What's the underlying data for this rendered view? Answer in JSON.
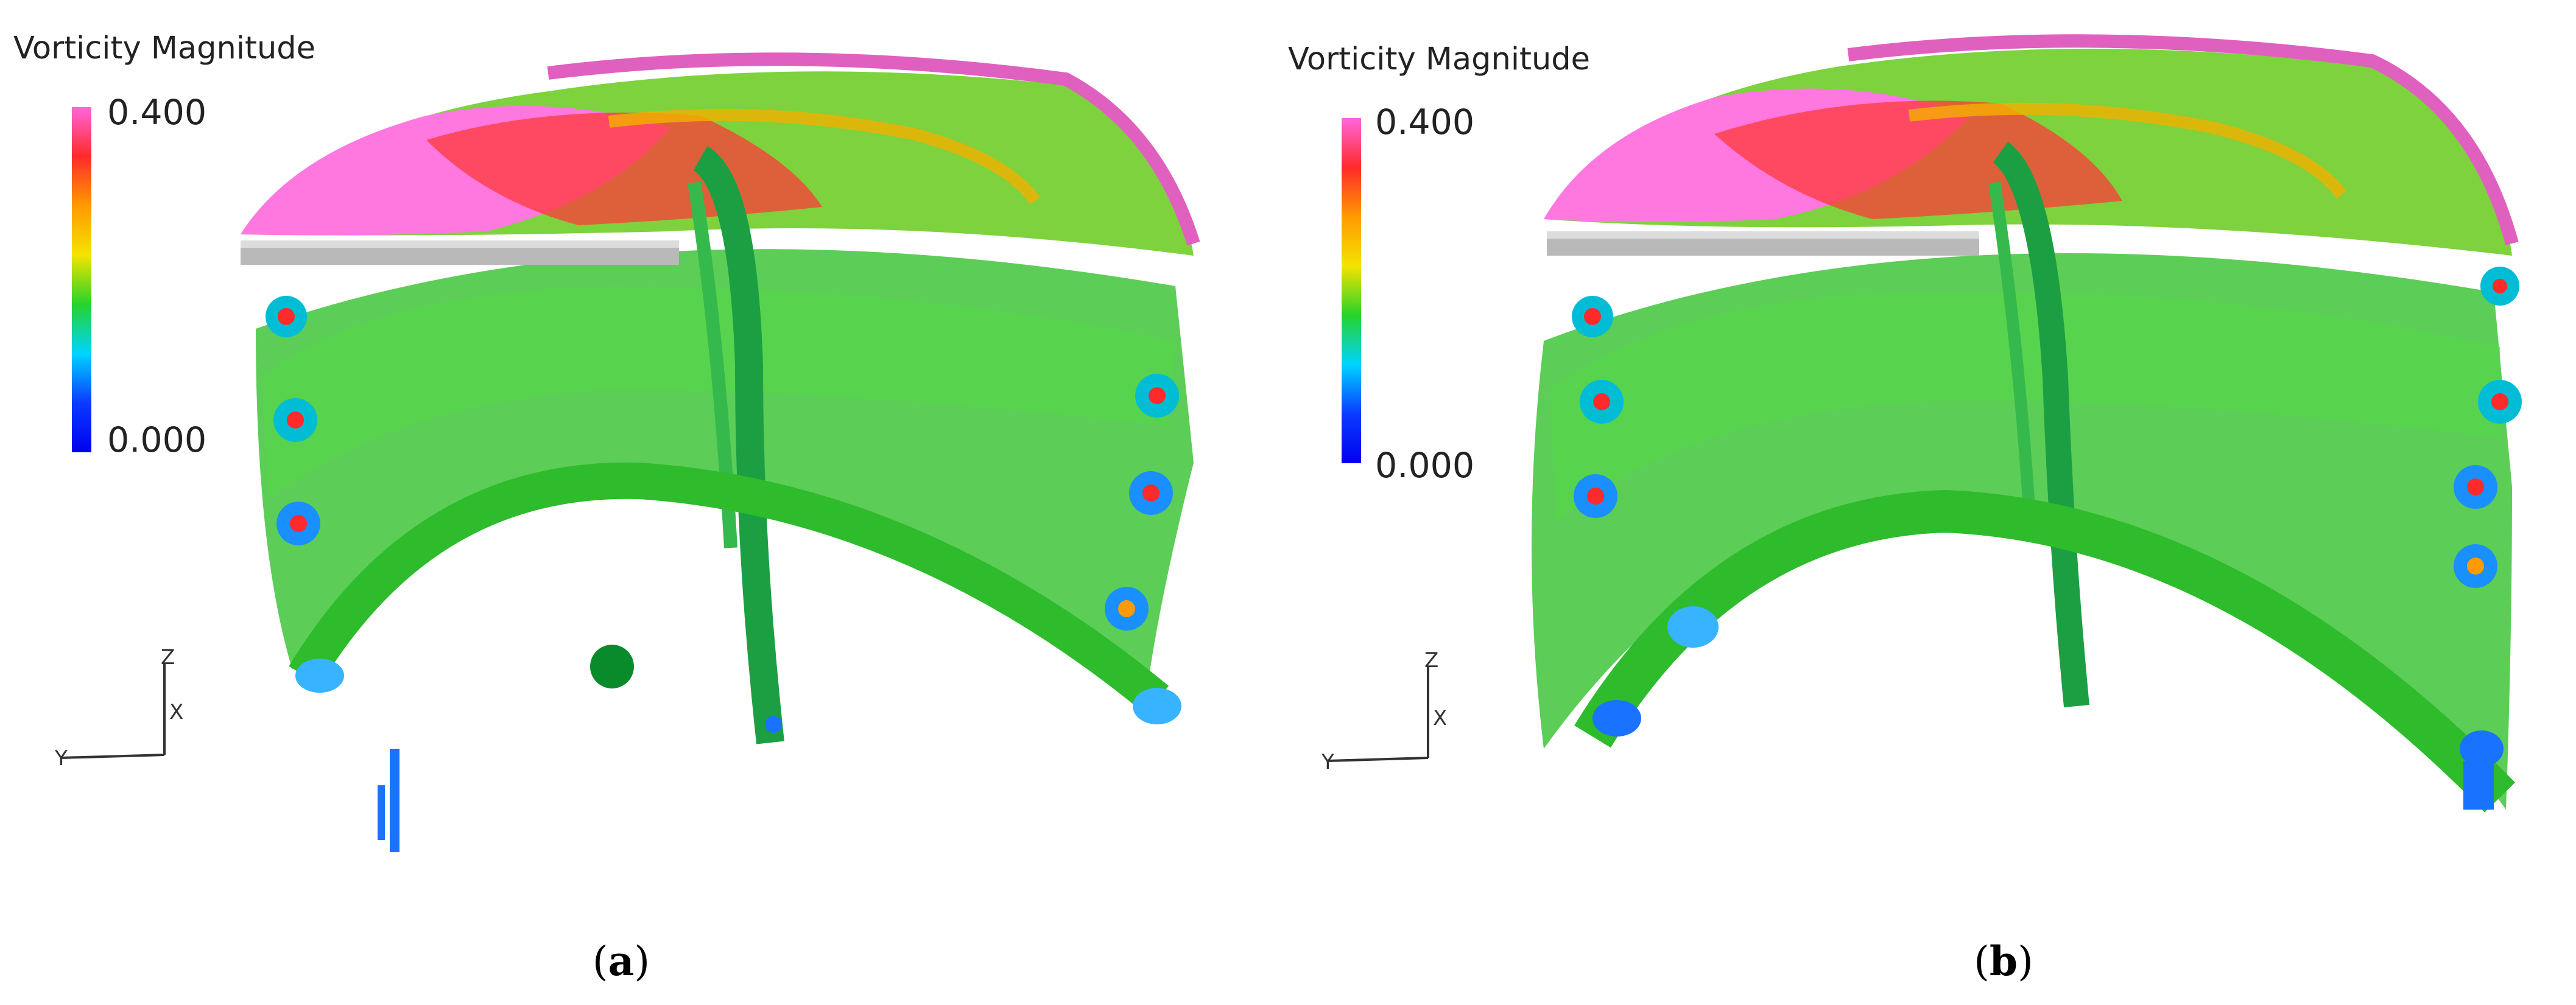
{
  "panels": [
    {
      "id": "a",
      "legend": {
        "title": "Vorticity Magnitude",
        "max": "0.400",
        "min": "0.000"
      },
      "caption": "a"
    },
    {
      "id": "b",
      "legend": {
        "title": "Vorticity Magnitude",
        "max": "0.400",
        "min": "0.000"
      },
      "caption": "b"
    }
  ],
  "colormap": [
    "#ff66dd",
    "#ff2a2a",
    "#ff9a00",
    "#f4e400",
    "#26d32a",
    "#00d4ff",
    "#0a3bff",
    "#0000ee"
  ],
  "axes": {
    "z": "Z",
    "x": "X",
    "y": "Y"
  }
}
